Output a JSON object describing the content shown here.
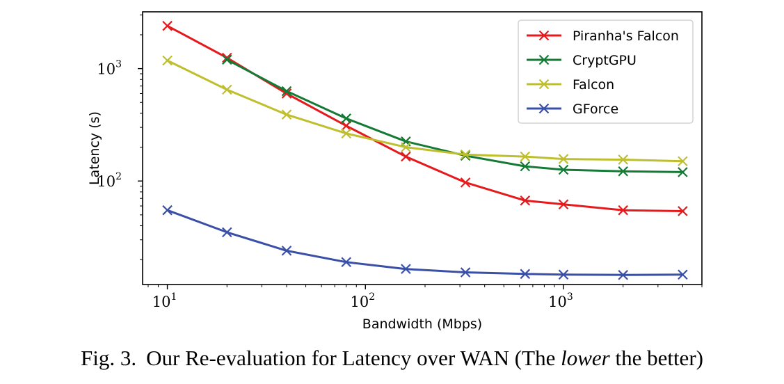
{
  "caption": {
    "label": "Fig. 3.",
    "text_before": "Our Re-evaluation for Latency over WAN (The ",
    "emphasis": "lower",
    "text_after": " the better)"
  },
  "chart_data": {
    "type": "line",
    "xlabel": "Bandwidth (Mbps)",
    "ylabel": "Latency (s)",
    "xscale": "log",
    "yscale": "log",
    "xlim": [
      7.5,
      5000
    ],
    "ylim": [
      12,
      3200
    ],
    "x_ticks": [
      {
        "base": "10",
        "exp": "1",
        "value": 10
      },
      {
        "base": "10",
        "exp": "2",
        "value": 100
      },
      {
        "base": "10",
        "exp": "3",
        "value": 1000
      }
    ],
    "y_ticks": [
      {
        "base": "10",
        "exp": "2",
        "value": 100
      },
      {
        "base": "10",
        "exp": "3",
        "value": 1000
      }
    ],
    "grid": false,
    "legend_position": "top-right",
    "series": [
      {
        "name": "Piranha's Falcon",
        "color": "#e41a1c",
        "marker": "x",
        "x": [
          10,
          20,
          40,
          80,
          160,
          320,
          640,
          1000,
          2000,
          4000
        ],
        "y": [
          2400,
          1250,
          600,
          310,
          165,
          97,
          67,
          62,
          55,
          54
        ]
      },
      {
        "name": "CryptGPU",
        "color": "#157a35",
        "marker": "x",
        "x": [
          20,
          40,
          80,
          160,
          320,
          640,
          1000,
          2000,
          4000
        ],
        "y": [
          1200,
          630,
          360,
          225,
          168,
          135,
          126,
          122,
          120
        ]
      },
      {
        "name": "Falcon",
        "color": "#bfbf2e",
        "marker": "x",
        "x": [
          10,
          20,
          40,
          80,
          160,
          320,
          640,
          1000,
          2000,
          4000
        ],
        "y": [
          1180,
          650,
          390,
          265,
          200,
          172,
          165,
          157,
          155,
          150
        ]
      },
      {
        "name": "GForce",
        "color": "#3a4fa6",
        "marker": "x",
        "x": [
          10,
          20,
          40,
          80,
          160,
          320,
          640,
          1000,
          2000,
          4000
        ],
        "y": [
          55,
          35,
          24,
          19,
          16.5,
          15.4,
          14.9,
          14.7,
          14.6,
          14.7
        ]
      }
    ]
  }
}
